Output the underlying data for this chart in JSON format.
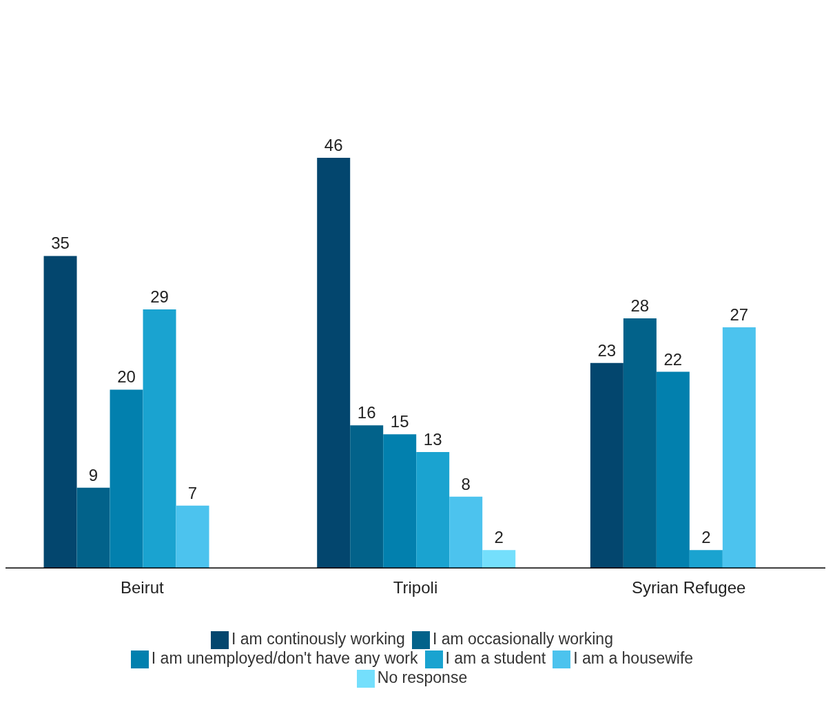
{
  "chart_data": {
    "type": "bar",
    "categories": [
      "Beirut",
      "Tripoli",
      "Syrian Refugee"
    ],
    "series": [
      {
        "name": "I am continously working",
        "color": "#03466e",
        "values": [
          35,
          46,
          23
        ]
      },
      {
        "name": "I am occasionally working",
        "color": "#02628a",
        "values": [
          9,
          16,
          28
        ]
      },
      {
        "name": "I am unemployed/don't have any work",
        "color": "#0280ae",
        "values": [
          20,
          15,
          22
        ]
      },
      {
        "name": "I am a student",
        "color": "#1aa3d0",
        "values": [
          29,
          13,
          2
        ]
      },
      {
        "name": "I am a housewife",
        "color": "#4cc3ee",
        "values": [
          7,
          8,
          27
        ]
      },
      {
        "name": "No response",
        "color": "#74dffc",
        "values": [
          null,
          2,
          null
        ]
      }
    ],
    "data_labels": true,
    "grid": false,
    "legend": "bottom"
  }
}
